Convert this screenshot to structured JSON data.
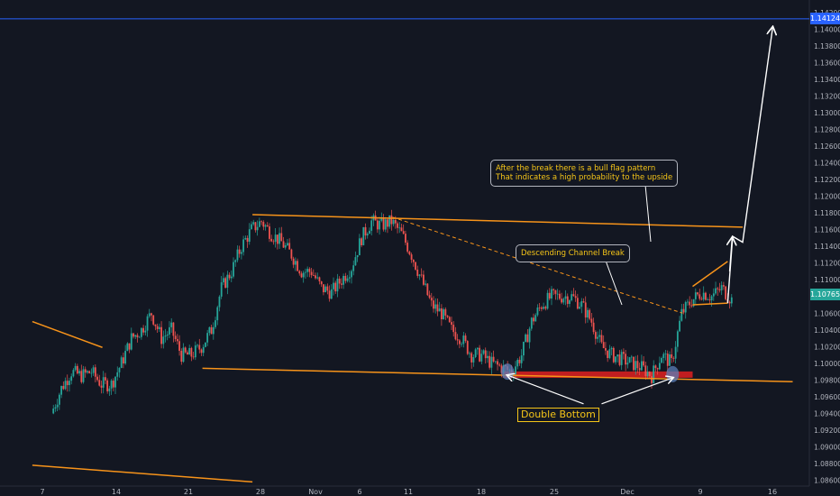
{
  "chart_data": {
    "type": "line",
    "instrument_note": "",
    "x_ticks": [
      "7",
      "14",
      "21",
      "28",
      "Nov",
      "6",
      "11",
      "18",
      "25",
      "Dec",
      "9",
      "16"
    ],
    "y_ticks": [
      "1.14200",
      "1.14000",
      "1.13800",
      "1.13600",
      "1.13400",
      "1.13200",
      "1.13000",
      "1.12800",
      "1.12600",
      "1.12400",
      "1.12200",
      "1.12000",
      "1.11800",
      "1.11600",
      "1.11400",
      "1.11200",
      "1.11000",
      "1.10800",
      "1.10600",
      "1.10400",
      "1.10200",
      "1.10000",
      "1.09800",
      "1.09600",
      "1.09400",
      "1.09200",
      "1.09000",
      "1.08800",
      "1.08600"
    ],
    "ylim": [
      1.0853,
      1.1435
    ],
    "current_price": "1.10765",
    "target_price": "1.14124",
    "price_path": [
      [
        1,
        1.094
      ],
      [
        2,
        1.097
      ],
      [
        3,
        1.099
      ],
      [
        4,
        1.0985
      ],
      [
        5,
        1.099
      ],
      [
        6,
        1.0975
      ],
      [
        7,
        1.0975
      ],
      [
        8,
        1.1
      ],
      [
        9,
        1.103
      ],
      [
        10,
        1.104
      ],
      [
        11,
        1.106
      ],
      [
        12,
        1.103
      ],
      [
        13,
        1.104
      ],
      [
        14,
        1.101
      ],
      [
        15,
        1.101
      ],
      [
        16,
        1.102
      ],
      [
        17,
        1.104
      ],
      [
        18,
        1.109
      ],
      [
        19,
        1.111
      ],
      [
        20,
        1.114
      ],
      [
        21,
        1.116
      ],
      [
        22,
        1.117
      ],
      [
        23,
        1.1155
      ],
      [
        24,
        1.1145
      ],
      [
        25,
        1.113
      ],
      [
        26,
        1.111
      ],
      [
        27,
        1.111
      ],
      [
        28,
        1.109
      ],
      [
        29,
        1.1085
      ],
      [
        30,
        1.11
      ],
      [
        31,
        1.1115
      ],
      [
        32,
        1.115
      ],
      [
        33,
        1.117
      ],
      [
        34,
        1.1165
      ],
      [
        35,
        1.117
      ],
      [
        36,
        1.1155
      ],
      [
        37,
        1.113
      ],
      [
        38,
        1.11
      ],
      [
        39,
        1.107
      ],
      [
        40,
        1.106
      ],
      [
        41,
        1.104
      ],
      [
        42,
        1.103
      ],
      [
        43,
        1.101
      ],
      [
        44,
        1.101
      ],
      [
        45,
        1.1
      ],
      [
        46,
        1.0995
      ],
      [
        47,
        1.099
      ],
      [
        48,
        1.101
      ],
      [
        49,
        1.105
      ],
      [
        50,
        1.107
      ],
      [
        51,
        1.108
      ],
      [
        52,
        1.108
      ],
      [
        53,
        1.108
      ],
      [
        54,
        1.107
      ],
      [
        55,
        1.105
      ],
      [
        56,
        1.102
      ],
      [
        57,
        1.101
      ],
      [
        58,
        1.1005
      ],
      [
        59,
        1.1
      ],
      [
        60,
        1.0995
      ],
      [
        61,
        1.0985
      ],
      [
        62,
        1.101
      ],
      [
        63,
        1.1
      ],
      [
        64,
        1.106
      ],
      [
        65,
        1.1075
      ],
      [
        66,
        1.1085
      ],
      [
        67,
        1.108
      ],
      [
        68,
        1.109
      ],
      [
        69,
        1.1076
      ]
    ],
    "drawings": {
      "upper_channel_line": [
        [
          21,
          1.1178
        ],
        [
          70,
          1.1163
        ]
      ],
      "lower_channel_line": [
        [
          16,
          1.0994
        ],
        [
          75,
          1.0978
        ]
      ],
      "descending_dashed_line": [
        [
          35,
          1.1175
        ],
        [
          64,
          1.106
        ]
      ],
      "left_line_1": [
        [
          -1,
          1.105
        ],
        [
          6,
          1.1019
        ]
      ],
      "left_line_2": [
        [
          -1,
          1.0878
        ],
        [
          21,
          1.0858
        ]
      ],
      "support_zone": [
        [
          46,
          1.0987
        ],
        [
          65,
          1.0982
        ]
      ],
      "bull_flag_upper": [
        [
          65,
          1.1092
        ],
        [
          68.5,
          1.1122
        ]
      ],
      "bull_flag_lower": [
        [
          65,
          1.107
        ],
        [
          68.5,
          1.1072
        ]
      ],
      "projection_path": [
        [
          68.5,
          1.1072
        ],
        [
          69,
          1.1152
        ],
        [
          70,
          1.1145
        ],
        [
          73,
          1.1402
        ]
      ],
      "double_bottom_points": [
        [
          46.5,
          1.099
        ],
        [
          63,
          1.0987
        ]
      ],
      "double_bottom_label_anchor": [
        [
          55,
          1.0945
        ]
      ]
    },
    "annotations": {
      "channel_break": "Descending Channel Break",
      "bull_flag_line1": "After the break there is a bull flag pattern",
      "bull_flag_line2": "That indicates a high probability to the upside",
      "double_bottom": "Double Bottom"
    }
  },
  "colors": {
    "background": "#131722",
    "axis_text": "#b2b5be",
    "drawing": "#f7931a",
    "support": "#e02020",
    "target_line": "#2962ff",
    "up_candle": "#26a69a",
    "down_candle": "#ef5350"
  }
}
